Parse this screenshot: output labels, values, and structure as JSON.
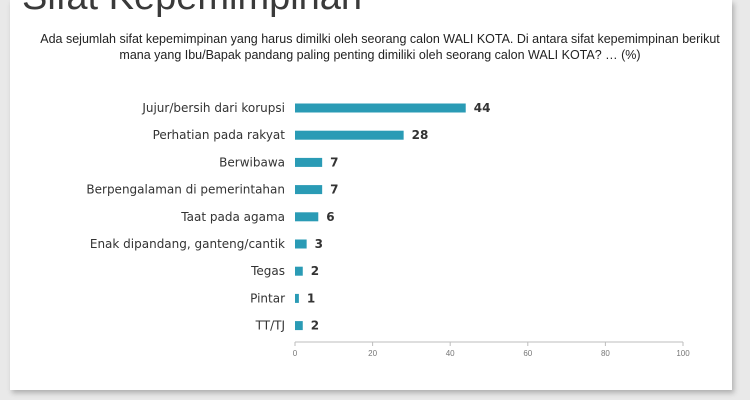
{
  "slide": {
    "title": "Sifat Kepemimpinan",
    "question": "Ada sejumlah sifat kepemimpinan yang harus dimilki oleh seorang calon WALI KOTA. Di antara sifat kepemimpinan berikut mana yang Ibu/Bapak pandang paling penting dimiliki oleh seorang calon WALI KOTA? … (%)"
  },
  "colors": {
    "bar": "#2a9bb5",
    "axis": "#bdbdbd",
    "background": "#e9e9e9"
  },
  "chart_data": {
    "type": "bar",
    "orientation": "horizontal",
    "title": "",
    "xlabel": "",
    "ylabel": "",
    "categories": [
      "Jujur/bersih dari korupsi",
      "Perhatian pada rakyat",
      "Berwibawa",
      "Berpengalaman di pemerintahan",
      "Taat pada agama",
      "Enak dipandang, ganteng/cantik",
      "Tegas",
      "Pintar",
      "TT/TJ"
    ],
    "values": [
      44,
      28,
      7,
      7,
      6,
      3,
      2,
      1,
      2
    ],
    "xlim": [
      0,
      100
    ],
    "xticks": [
      0,
      20,
      40,
      60,
      80,
      100
    ],
    "grid": false,
    "legend": "none"
  }
}
